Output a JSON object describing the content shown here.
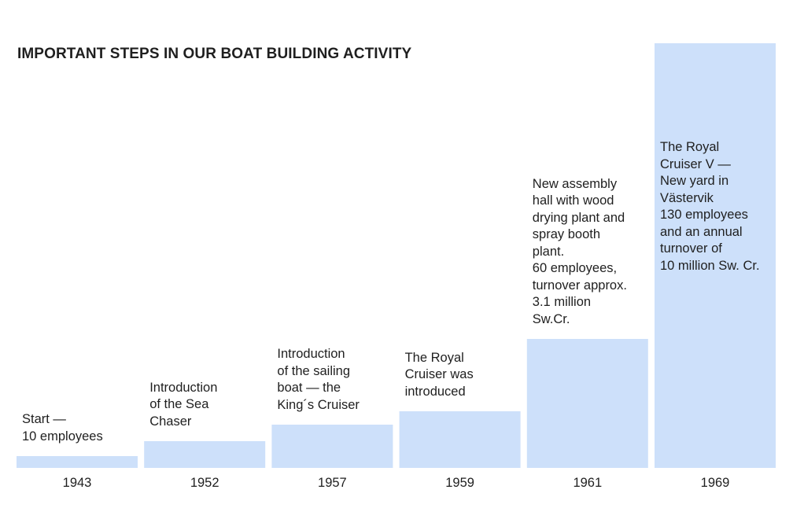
{
  "colors": {
    "bar": "#cde0fa",
    "text": "#1f1f1f",
    "background": "#ffffff"
  },
  "chart_data": {
    "type": "bar",
    "title": "IMPORTANT STEPS IN OUR BOAT BUILDING ACTIVITY",
    "xlabel": "",
    "ylabel": "",
    "grid": false,
    "categories": [
      "1943",
      "1952",
      "1957",
      "1959",
      "1961",
      "1969"
    ],
    "values": [
      15,
      34,
      55,
      72,
      164,
      540
    ],
    "ylim": [
      0,
      540
    ],
    "annotations": [
      "Start —\n10 employees",
      "Introduction\nof the Sea\nChaser",
      "Introduction\nof the sailing\nboat — the\nKing´s Cruiser",
      "The Royal\nCruiser was\nintroduced",
      "New assembly\nhall with wood\ndrying plant and\nspray booth\nplant.\n60 employees,\nturnover approx.\n3.1 million\nSw.Cr.",
      "The Royal\nCruiser V —\nNew yard in\nVästervik\n130 employees\nand an annual\nturnover of\n10 million Sw. Cr."
    ]
  }
}
